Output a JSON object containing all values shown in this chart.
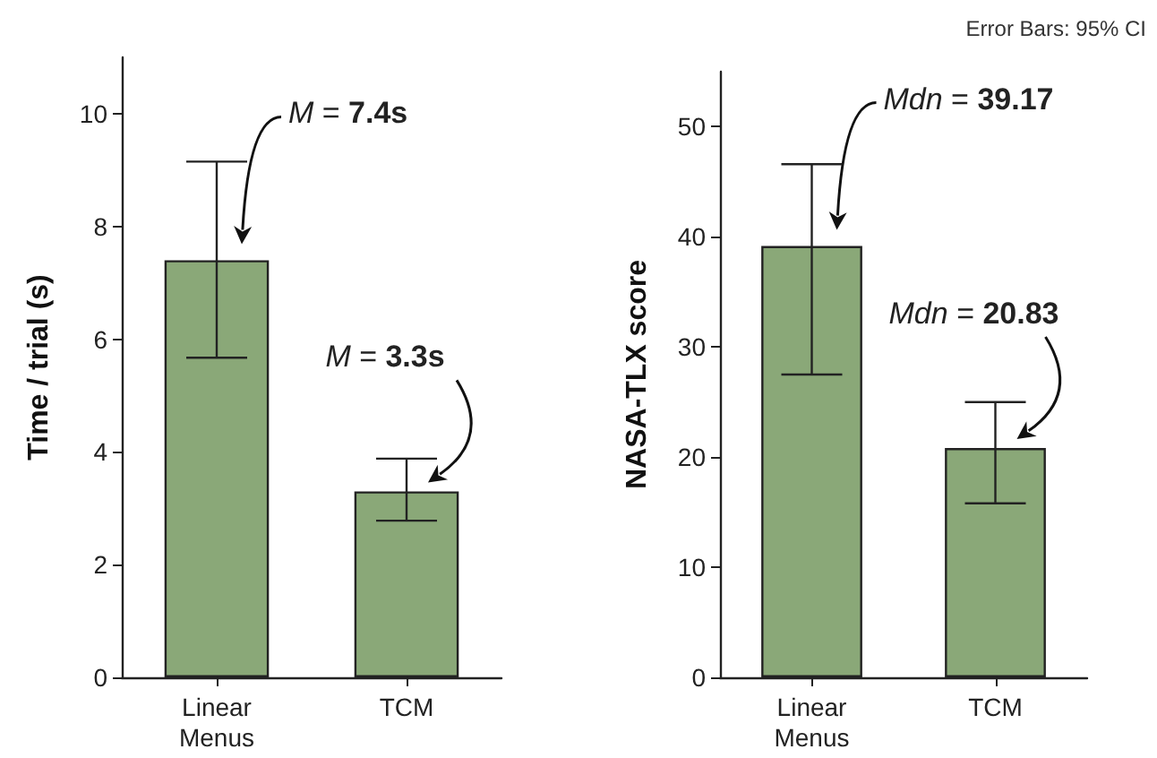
{
  "chart_data": [
    {
      "type": "bar",
      "categories": [
        "Linear Menus",
        "TCM"
      ],
      "values": [
        7.4,
        3.3
      ],
      "color": "#8aa878",
      "errors": [
        [
          5.67,
          9.15
        ],
        [
          2.78,
          3.88
        ]
      ],
      "ylabel": "Time / trial (s)",
      "ylim": [
        0,
        11
      ],
      "yticks": [
        0,
        2,
        4,
        6,
        8,
        10
      ],
      "annotations": [
        "M = 7.4s",
        "M = 3.3s"
      ]
    },
    {
      "type": "bar",
      "categories": [
        "Linear Menus",
        "TCM"
      ],
      "values": [
        39.17,
        20.83
      ],
      "color": "#8aa878",
      "errors": [
        [
          27.5,
          46.6
        ],
        [
          15.8,
          25.0
        ]
      ],
      "ylabel": "NASA-TLX score",
      "ylim": [
        0,
        55
      ],
      "yticks": [
        0,
        10,
        20,
        30,
        40,
        50
      ],
      "annotations": [
        "Mdn = 39.17",
        "Mdn = 20.83",
        "Error Bars: 95% CI"
      ]
    }
  ]
}
